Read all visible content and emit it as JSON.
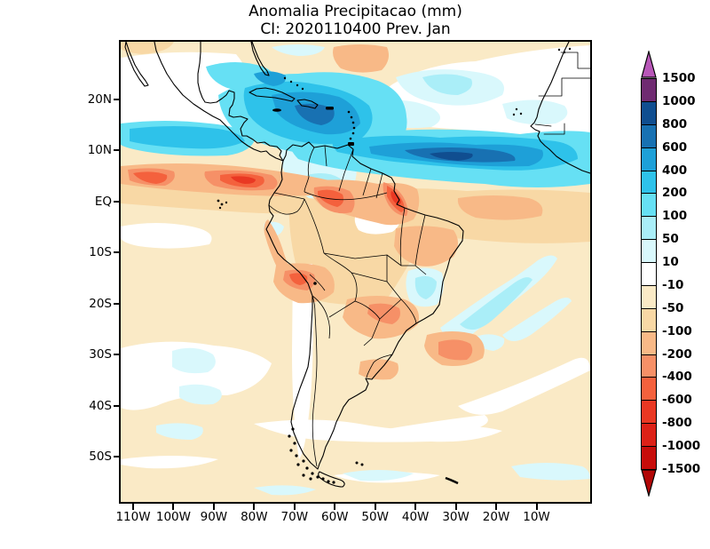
{
  "title": {
    "line1": "Anomalia Precipitacao (mm)",
    "line2": "CI: 2020110400 Prev. Jan"
  },
  "axes": {
    "lat_labels": [
      "20N",
      "10N",
      "EQ",
      "10S",
      "20S",
      "30S",
      "40S",
      "50S"
    ],
    "lon_labels": [
      "110W",
      "100W",
      "90W",
      "80W",
      "70W",
      "60W",
      "50W",
      "40W",
      "30W",
      "20W",
      "10W"
    ]
  },
  "colorbar": {
    "unit": "mm",
    "labels": [
      "1500",
      "1000",
      "800",
      "600",
      "400",
      "200",
      "100",
      "50",
      "10",
      "-10",
      "-50",
      "-100",
      "-200",
      "-400",
      "-600",
      "-800",
      "-1000",
      "-1500"
    ],
    "segment_colors": [
      "#6f2b71",
      "#104e90",
      "#1871b2",
      "#1ea0d8",
      "#2ec2ea",
      "#66e0f4",
      "#aaeef8",
      "#d9f8fc",
      "#ffffff",
      "#faeac6",
      "#f8d8a5",
      "#f8b987",
      "#f69067",
      "#f4613d",
      "#e93823",
      "#dc2117",
      "#c70d0a"
    ],
    "arrow_top_color": "#b857b8",
    "arrow_bottom_color": "#b20707"
  },
  "map_legend_meaning": {
    "positive_anomaly_colors": "blues/cyans",
    "negative_anomaly_colors": "oranges/reds",
    "near_zero_color": "#ffffff",
    "background_slightly_negative": "#faeac6"
  }
}
